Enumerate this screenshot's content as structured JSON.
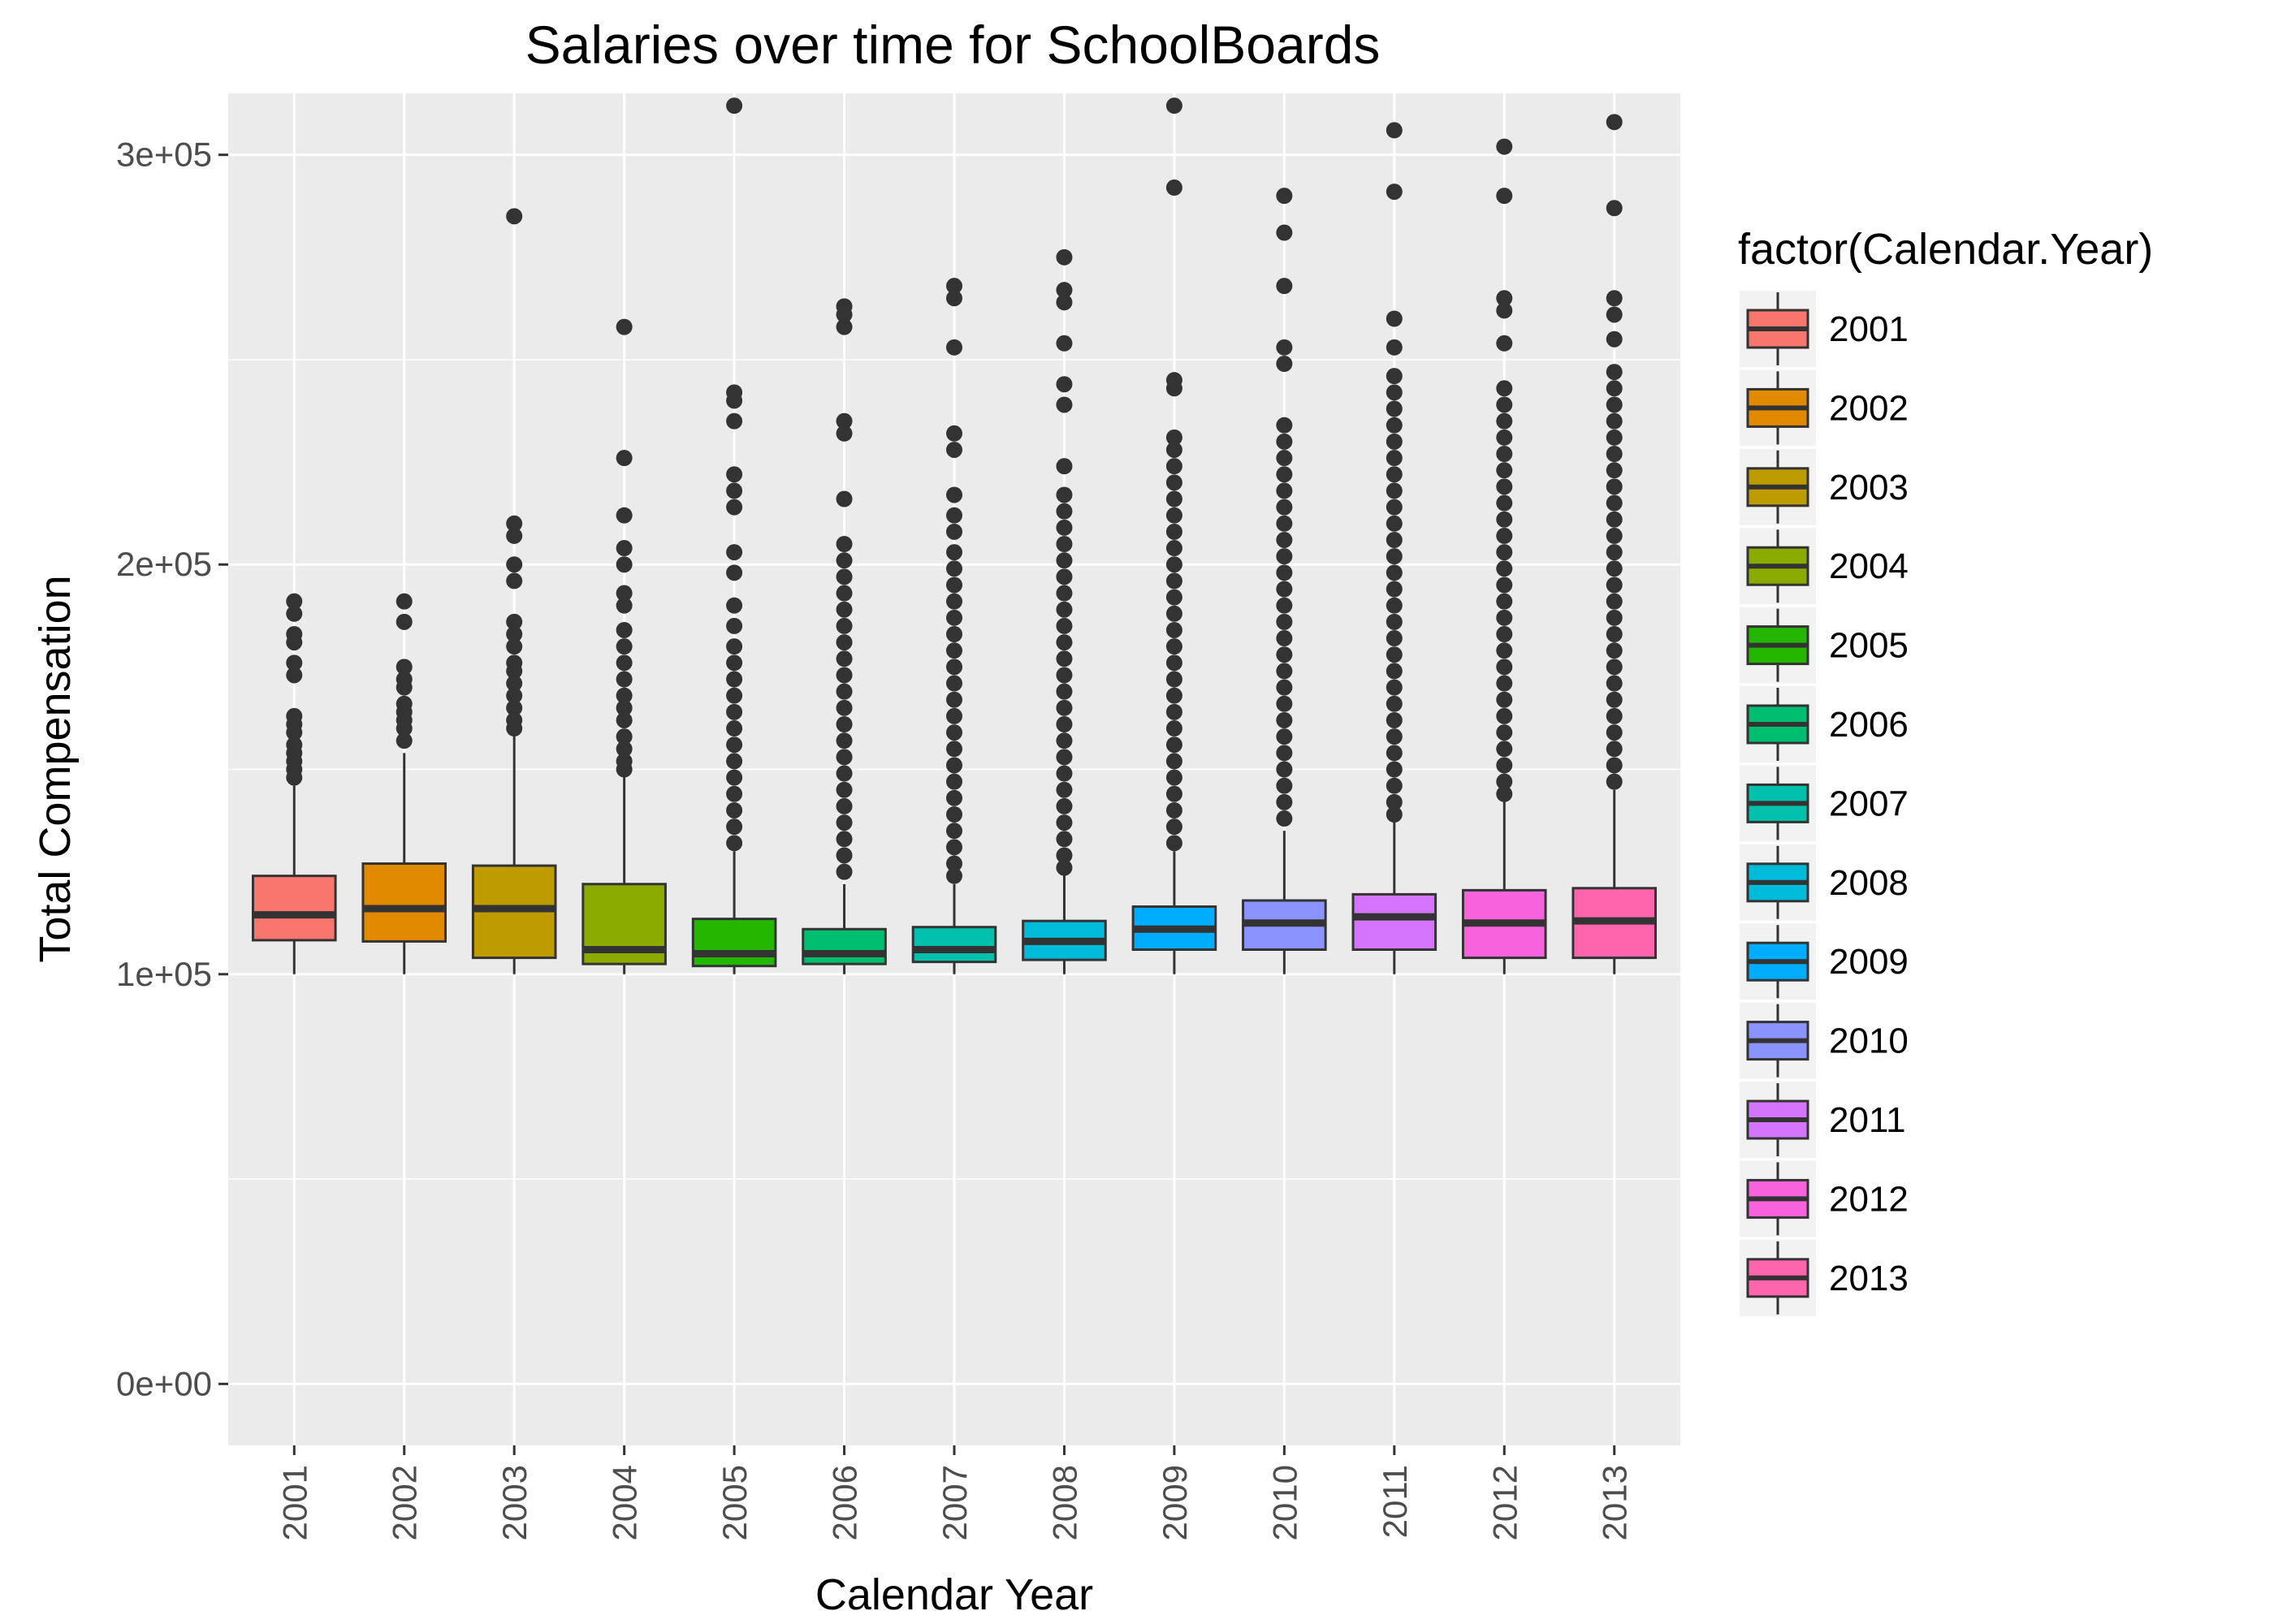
{
  "chart_data": {
    "type": "boxplot",
    "title": "Salaries over time for SchoolBoards",
    "xlabel": "Calendar Year",
    "ylabel": "Total Compensation",
    "ylim": [
      -15000,
      315000
    ],
    "y_ticks": [
      {
        "value": 0,
        "label": "0e+00"
      },
      {
        "value": 100000,
        "label": "1e+05"
      },
      {
        "value": 200000,
        "label": "2e+05"
      },
      {
        "value": 300000,
        "label": "3e+05"
      }
    ],
    "grid": true,
    "legend": {
      "title": "factor(Calendar.Year)",
      "position": "right"
    },
    "categories": [
      "2001",
      "2002",
      "2003",
      "2004",
      "2005",
      "2006",
      "2007",
      "2008",
      "2009",
      "2010",
      "2011",
      "2012",
      "2013"
    ],
    "colors": [
      "#F8766D",
      "#E18A00",
      "#BE9C00",
      "#8CAB00",
      "#24B700",
      "#00BE70",
      "#00C1AB",
      "#00BBDA",
      "#00ACFC",
      "#8B93FF",
      "#D575FE",
      "#F962DD",
      "#FF65AC"
    ],
    "series": [
      {
        "category": "2001",
        "min": 100000,
        "q1": 108300,
        "median": 114500,
        "q3": 124000,
        "whisker_high": 146000,
        "outliers": [
          191000,
          188000,
          183000,
          181000,
          176000,
          173000,
          163000,
          161000,
          159000,
          156000,
          154000,
          152000,
          150000,
          148000
        ]
      },
      {
        "category": "2002",
        "min": 100000,
        "q1": 108000,
        "median": 116000,
        "q3": 127000,
        "whisker_high": 154000,
        "outliers": [
          191000,
          186000,
          175000,
          172000,
          170000,
          166000,
          164000,
          162000,
          160000,
          157000
        ]
      },
      {
        "category": "2003",
        "min": 100000,
        "q1": 104000,
        "median": 116000,
        "q3": 126500,
        "whisker_high": 159000,
        "outliers": [
          285000,
          210000,
          207000,
          200000,
          196000,
          186000,
          183000,
          180000,
          176000,
          174000,
          171000,
          168000,
          165000,
          162000,
          160000
        ]
      },
      {
        "category": "2004",
        "min": 100000,
        "q1": 102500,
        "median": 106000,
        "q3": 122000,
        "whisker_high": 149000,
        "outliers": [
          258000,
          226000,
          212000,
          204000,
          200000,
          193000,
          190000,
          184000,
          180000,
          176000,
          172000,
          168000,
          165000,
          162000,
          158000,
          155000,
          152000,
          150000
        ]
      },
      {
        "category": "2005",
        "min": 100000,
        "q1": 102000,
        "median": 105000,
        "q3": 113500,
        "whisker_high": 130000,
        "outliers": [
          312000,
          242000,
          240000,
          235000,
          222000,
          218000,
          214000,
          203000,
          198000,
          190000,
          185000,
          180000,
          176000,
          172000,
          168000,
          164000,
          160000,
          156000,
          152000,
          148000,
          144000,
          140000,
          136000,
          132000
        ]
      },
      {
        "category": "2006",
        "min": 100000,
        "q1": 102500,
        "median": 105000,
        "q3": 111000,
        "whisker_high": 122000,
        "outliers": [
          263000,
          261000,
          258000,
          235000,
          232000,
          216000,
          205000,
          201000,
          197000,
          193000,
          189000,
          185000,
          181000,
          177000,
          173000,
          169000,
          165000,
          161000,
          157000,
          153000,
          149000,
          145000,
          141000,
          137000,
          133000,
          129000,
          125000
        ]
      },
      {
        "category": "2007",
        "min": 100000,
        "q1": 103000,
        "median": 106000,
        "q3": 111500,
        "whisker_high": 122000,
        "outliers": [
          268000,
          265000,
          253000,
          232000,
          228000,
          217000,
          212000,
          208000,
          203000,
          199000,
          195000,
          191000,
          187000,
          183000,
          179000,
          175000,
          171000,
          167000,
          163000,
          159000,
          155000,
          151000,
          147000,
          143000,
          139000,
          135000,
          131000,
          127000,
          124000
        ]
      },
      {
        "category": "2008",
        "min": 100000,
        "q1": 103500,
        "median": 108000,
        "q3": 113000,
        "whisker_high": 125000,
        "outliers": [
          275000,
          267000,
          264000,
          254000,
          244000,
          239000,
          224000,
          217000,
          213000,
          209000,
          205000,
          201000,
          197000,
          193000,
          189000,
          185000,
          181000,
          177000,
          173000,
          169000,
          165000,
          161000,
          157000,
          153000,
          149000,
          145000,
          141000,
          137000,
          133000,
          129000,
          126000
        ]
      },
      {
        "category": "2009",
        "min": 100000,
        "q1": 106000,
        "median": 111000,
        "q3": 116500,
        "whisker_high": 130000,
        "outliers": [
          312000,
          292000,
          245000,
          243000,
          231000,
          228000,
          224000,
          220000,
          216000,
          212000,
          208000,
          204000,
          200000,
          196000,
          192000,
          188000,
          184000,
          180000,
          176000,
          172000,
          168000,
          164000,
          160000,
          156000,
          152000,
          148000,
          144000,
          140000,
          136000,
          132000
        ]
      },
      {
        "category": "2010",
        "min": 100000,
        "q1": 106000,
        "median": 112500,
        "q3": 118000,
        "whisker_high": 135000,
        "outliers": [
          290000,
          281000,
          268000,
          253000,
          249000,
          234000,
          230000,
          226000,
          222000,
          218000,
          214000,
          210000,
          206000,
          202000,
          198000,
          194000,
          190000,
          186000,
          182000,
          178000,
          174000,
          170000,
          166000,
          162000,
          158000,
          154000,
          150000,
          146000,
          142000,
          138000
        ]
      },
      {
        "category": "2011",
        "min": 100000,
        "q1": 106000,
        "median": 114000,
        "q3": 119500,
        "whisker_high": 138000,
        "outliers": [
          306000,
          291000,
          260000,
          253000,
          246000,
          242000,
          238000,
          234000,
          230000,
          226000,
          222000,
          218000,
          214000,
          210000,
          206000,
          202000,
          198000,
          194000,
          190000,
          186000,
          182000,
          178000,
          174000,
          170000,
          166000,
          162000,
          158000,
          154000,
          150000,
          146000,
          142000,
          139000
        ]
      },
      {
        "category": "2012",
        "min": 100000,
        "q1": 104000,
        "median": 112500,
        "q3": 120500,
        "whisker_high": 143000,
        "outliers": [
          302000,
          290000,
          265000,
          262000,
          254000,
          243000,
          239000,
          235000,
          231000,
          227000,
          223000,
          219000,
          215000,
          211000,
          207000,
          203000,
          199000,
          195000,
          191000,
          187000,
          183000,
          179000,
          175000,
          171000,
          167000,
          163000,
          159000,
          155000,
          151000,
          147000,
          144000
        ]
      },
      {
        "category": "2013",
        "min": 100000,
        "q1": 104000,
        "median": 113000,
        "q3": 121000,
        "whisker_high": 145000,
        "outliers": [
          308000,
          287000,
          265000,
          261000,
          255000,
          247000,
          243000,
          239000,
          235000,
          231000,
          227000,
          223000,
          219000,
          215000,
          211000,
          207000,
          203000,
          199000,
          195000,
          191000,
          187000,
          183000,
          179000,
          175000,
          171000,
          167000,
          163000,
          159000,
          155000,
          151000,
          147000
        ]
      }
    ]
  }
}
